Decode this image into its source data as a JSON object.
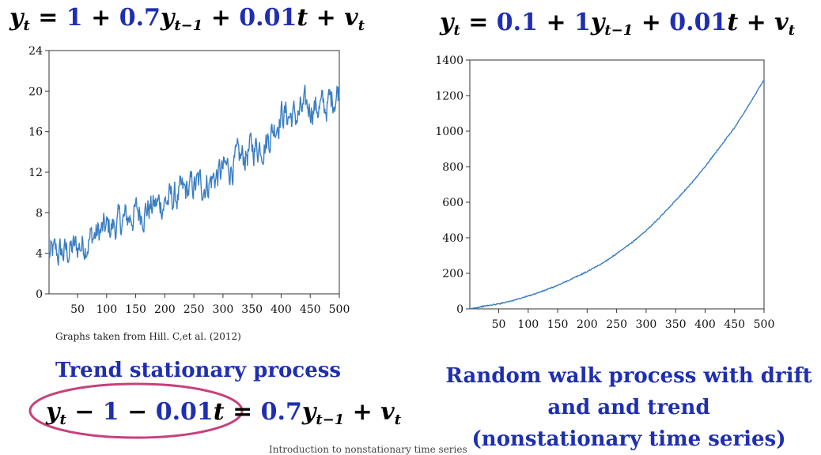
{
  "equations": {
    "left": {
      "y": "y",
      "t": "t",
      "eq": " = ",
      "c": "1",
      "plus1": " + ",
      "coef": "0.7",
      "ylag": "y",
      "tlag": "t−1",
      "plus2": " + ",
      "trend": "0.01",
      "tvar": "t",
      "plus3": " + ",
      "v": "v",
      "tv": "t"
    },
    "right": {
      "y": "y",
      "t": "t",
      "eq": " = ",
      "c": "0.1",
      "plus1": " + ",
      "coef": "1",
      "ylag": "y",
      "tlag": "t−1",
      "plus2": " + ",
      "trend": "0.01",
      "tvar": "t",
      "plus3": " + ",
      "v": "v",
      "tv": "t"
    },
    "bottom": {
      "y": "y",
      "t": "t",
      "minus1": " − ",
      "c": "1",
      "minus2": " − ",
      "trend": "0.01",
      "tvar": "t",
      "eq": " = ",
      "coef": "0.7",
      "ylag": "y",
      "tlag": "t−1",
      "plus": " + ",
      "v": "v",
      "tv": "t"
    }
  },
  "captions": {
    "left": "Trend stationary process",
    "right_line1": "Random walk process with drift",
    "right_line2": "and and trend",
    "right_line3": "(nonstationary time series)"
  },
  "source_note": "Graphs taken from Hill. C,et al. (2012)",
  "footer": "Introduction to nonstationary time series",
  "colors": {
    "line": "#3a7ec2",
    "accent": "#1f2fb0",
    "highlight": "#c8407a"
  },
  "chart_data": [
    {
      "type": "line",
      "x_range": [
        1,
        500
      ],
      "xlim": [
        1,
        500
      ],
      "ylim": [
        0,
        24
      ],
      "x_ticks": [
        50,
        100,
        150,
        200,
        250,
        300,
        350,
        400,
        450,
        500
      ],
      "y_ticks": [
        0,
        4,
        8,
        12,
        16,
        20,
        24
      ],
      "grid": false,
      "series": [
        {
          "x": [
            1,
            25,
            50,
            75,
            100,
            125,
            150,
            175,
            200,
            225,
            250,
            275,
            300,
            325,
            350,
            375,
            400,
            425,
            450,
            475,
            500
          ],
          "values": [
            3.8,
            4.0,
            4.6,
            5.6,
            6.4,
            7.0,
            8.0,
            8.5,
            9.1,
            9.6,
            10.6,
            11.0,
            12.1,
            13.0,
            14.3,
            15.1,
            17.8,
            17.4,
            18.6,
            18.3,
            20.2
          ]
        }
      ]
    },
    {
      "type": "line",
      "x_range": [
        1,
        500
      ],
      "xlim": [
        1,
        500
      ],
      "ylim": [
        0,
        1400
      ],
      "x_ticks": [
        50,
        100,
        150,
        200,
        250,
        300,
        350,
        400,
        450,
        500
      ],
      "y_ticks": [
        0,
        200,
        400,
        600,
        800,
        1000,
        1200,
        1400
      ],
      "grid": false,
      "series": [
        {
          "x": [
            1,
            25,
            50,
            75,
            100,
            125,
            150,
            175,
            200,
            225,
            250,
            275,
            300,
            325,
            350,
            375,
            400,
            425,
            450,
            475,
            500
          ],
          "values": [
            0,
            15,
            28,
            48,
            72,
            100,
            132,
            170,
            210,
            255,
            310,
            370,
            440,
            520,
            610,
            700,
            800,
            910,
            1020,
            1150,
            1290
          ]
        }
      ]
    }
  ]
}
